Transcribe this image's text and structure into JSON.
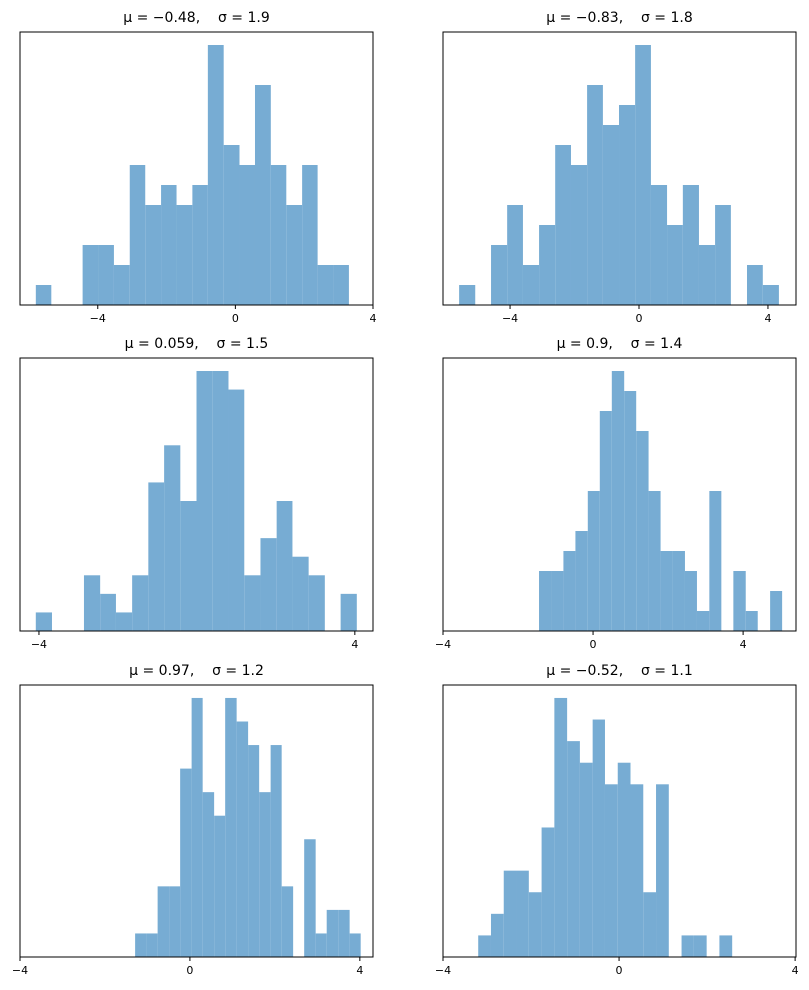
{
  "chart_data": [
    {
      "type": "histogram",
      "title": "μ = −0.48,    σ = 1.9",
      "color": "#77acd3",
      "bins": [
        -5.8,
        -5.35,
        -4.89,
        -4.44,
        -3.98,
        -3.53,
        -3.07,
        -2.62,
        -2.16,
        -1.71,
        -1.25,
        -0.8,
        -0.34,
        0.12,
        0.57,
        1.03,
        1.48,
        1.94,
        2.39,
        2.85,
        3.3
      ],
      "counts": [
        1,
        0,
        0,
        3,
        3,
        2,
        7,
        5,
        6,
        5,
        6,
        13,
        8,
        7,
        11,
        7,
        5,
        7,
        2,
        2
      ],
      "xlim": [
        -6.26,
        4
      ],
      "ylim": [
        0,
        13.65
      ],
      "xticks": [
        {
          "value": -4,
          "label": "−4"
        },
        0,
        4
      ]
    },
    {
      "type": "histogram",
      "title": "μ = −0.83,    σ = 1.8",
      "color": "#77acd3",
      "bins": [
        -5.58,
        -5.08,
        -4.59,
        -4.09,
        -3.6,
        -3.1,
        -2.6,
        -2.11,
        -1.61,
        -1.12,
        -0.62,
        -0.12,
        0.37,
        0.87,
        1.36,
        1.86,
        2.36,
        2.85,
        3.35,
        3.84,
        4.34
      ],
      "counts": [
        1,
        0,
        3,
        5,
        2,
        4,
        8,
        7,
        11,
        9,
        10,
        13,
        6,
        4,
        6,
        3,
        5,
        0,
        2,
        1
      ],
      "xlim": [
        -6.08,
        4.87
      ],
      "ylim": [
        0,
        13.65
      ],
      "xticks": [
        {
          "value": -4,
          "label": "−4"
        },
        0,
        4
      ]
    },
    {
      "type": "histogram",
      "title": "μ = 0.059,    σ = 1.5",
      "color": "#77acd3",
      "bins": [
        -4.08,
        -3.67,
        -3.27,
        -2.86,
        -2.45,
        -2.05,
        -1.64,
        -1.23,
        -0.83,
        -0.42,
        -0.01,
        0.39,
        0.8,
        1.2,
        1.61,
        2.02,
        2.42,
        2.83,
        3.24,
        3.64,
        4.05
      ],
      "counts": [
        1,
        0,
        0,
        3,
        2,
        1,
        3,
        8,
        10,
        7,
        14,
        14,
        13,
        3,
        5,
        7,
        4,
        3,
        0,
        2
      ],
      "xlim": [
        -4.48,
        4.46
      ],
      "ylim": [
        0,
        14.7
      ],
      "xticks": [
        {
          "value": -4,
          "label": "−4"
        },
        4
      ]
    },
    {
      "type": "histogram",
      "title": "μ = 0.9,    σ = 1.4",
      "color": "#77acd3",
      "bins": [
        -1.44,
        -1.12,
        -0.79,
        -0.47,
        -0.14,
        0.18,
        0.5,
        0.83,
        1.15,
        1.48,
        1.8,
        2.12,
        2.45,
        2.77,
        3.1,
        3.42,
        3.74,
        4.07,
        4.39,
        4.72,
        5.04
      ],
      "counts": [
        3,
        3,
        4,
        5,
        7,
        11,
        13,
        12,
        10,
        7,
        4,
        4,
        3,
        1,
        7,
        0,
        3,
        1,
        0,
        2
      ],
      "xlim": [
        -4,
        5.41
      ],
      "ylim": [
        0,
        13.65
      ],
      "xticks": [
        {
          "value": -4,
          "label": "−4"
        },
        0,
        4
      ]
    },
    {
      "type": "histogram",
      "title": "μ = 0.97,    σ = 1.2",
      "color": "#77acd3",
      "bins": [
        -1.29,
        -1.02,
        -0.76,
        -0.49,
        -0.23,
        0.04,
        0.3,
        0.57,
        0.83,
        1.1,
        1.37,
        1.63,
        1.9,
        2.16,
        2.43,
        2.69,
        2.96,
        3.22,
        3.49,
        3.76,
        4.02
      ],
      "counts": [
        1,
        1,
        3,
        3,
        8,
        11,
        7,
        6,
        11,
        10,
        9,
        7,
        9,
        3,
        0,
        5,
        1,
        2,
        2,
        1
      ],
      "xlim": [
        -4,
        4.31
      ],
      "ylim": [
        0,
        11.55
      ],
      "xticks": [
        {
          "value": -4,
          "label": "−4"
        },
        0,
        4
      ]
    },
    {
      "type": "histogram",
      "title": "μ = −0.52,    σ = 1.1",
      "color": "#77acd3",
      "bins": [
        -3.2,
        -2.91,
        -2.62,
        -2.33,
        -2.05,
        -1.76,
        -1.47,
        -1.18,
        -0.89,
        -0.6,
        -0.32,
        -0.03,
        0.26,
        0.55,
        0.84,
        1.13,
        1.42,
        1.7,
        1.99,
        2.28,
        2.57
      ],
      "counts": [
        1,
        2,
        4,
        4,
        3,
        6,
        12,
        10,
        9,
        11,
        8,
        9,
        8,
        3,
        8,
        0,
        1,
        1,
        0,
        1
      ],
      "xlim": [
        -4,
        4.02
      ],
      "ylim": [
        0,
        12.6
      ],
      "xticks": [
        {
          "value": -4,
          "label": "−4"
        },
        0,
        4
      ]
    }
  ]
}
